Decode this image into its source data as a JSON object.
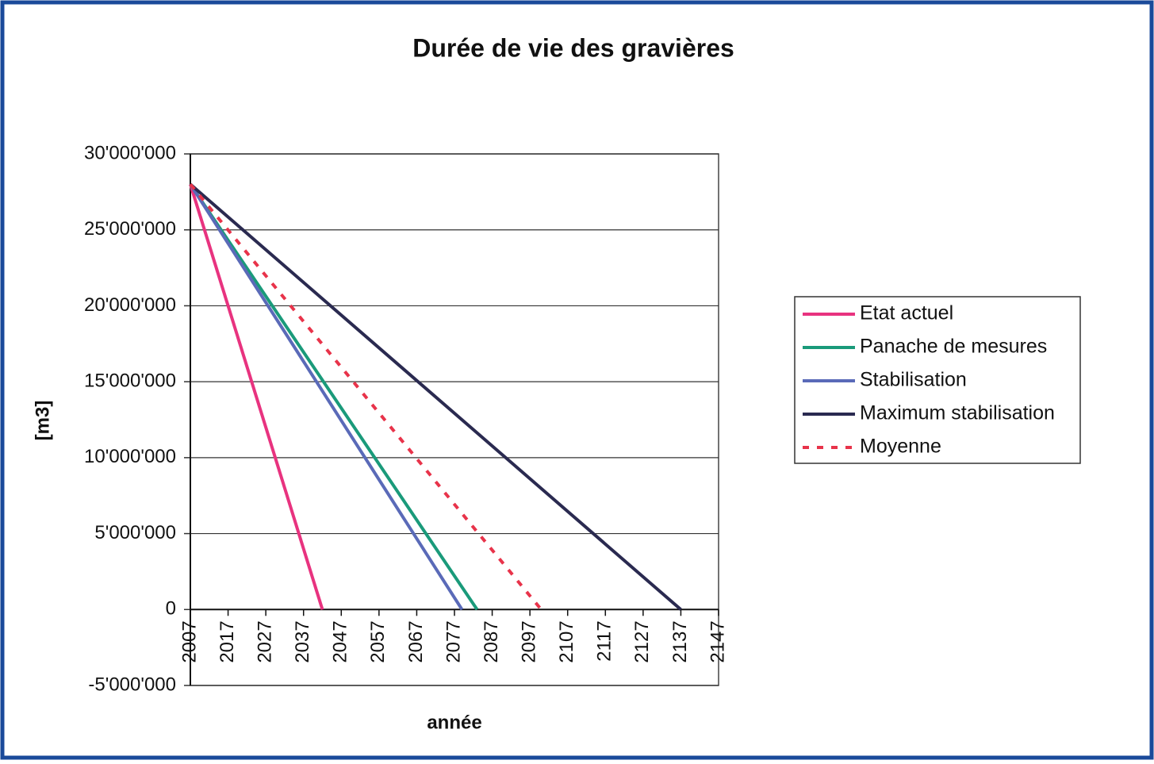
{
  "chart_data": {
    "type": "line",
    "title": "Durée de vie des gravières",
    "xlabel": "année",
    "ylabel": "[m3]",
    "xlim": [
      2007,
      2147
    ],
    "xticks": [
      2007,
      2017,
      2027,
      2037,
      2047,
      2057,
      2067,
      2077,
      2087,
      2097,
      2107,
      2117,
      2127,
      2137,
      2147
    ],
    "ylim": [
      -5000000,
      30000000
    ],
    "yticks": [
      {
        "value": -5000000,
        "label": "-5'000'000"
      },
      0,
      {
        "value": 5000000,
        "label": "5'000'000"
      },
      {
        "value": 10000000,
        "label": "10'000'000"
      },
      {
        "value": 15000000,
        "label": "15'000'000"
      },
      {
        "value": 20000000,
        "label": "20'000'000"
      },
      {
        "value": 25000000,
        "label": "25'000'000"
      },
      {
        "value": 30000000,
        "label": "30'000'000"
      }
    ],
    "grid": true,
    "legend": "right",
    "series": [
      {
        "name": "Etat actuel",
        "color": "#e8337f",
        "dash": false,
        "x": [
          2007,
          2042
        ],
        "values": [
          28000000,
          0
        ]
      },
      {
        "name": "Panache de mesures",
        "color": "#1a9a7a",
        "dash": false,
        "x": [
          2007,
          2083
        ],
        "values": [
          28000000,
          0
        ]
      },
      {
        "name": "Stabilisation",
        "color": "#5a6ab8",
        "dash": false,
        "x": [
          2007,
          2079
        ],
        "values": [
          28000000,
          0
        ]
      },
      {
        "name": "Maximum stabilisation",
        "color": "#2a2a50",
        "dash": false,
        "x": [
          2007,
          2137
        ],
        "values": [
          28000000,
          0
        ]
      },
      {
        "name": "Moyenne",
        "color": "#e8334a",
        "dash": true,
        "x": [
          2007,
          2100
        ],
        "values": [
          28000000,
          0
        ]
      }
    ]
  }
}
